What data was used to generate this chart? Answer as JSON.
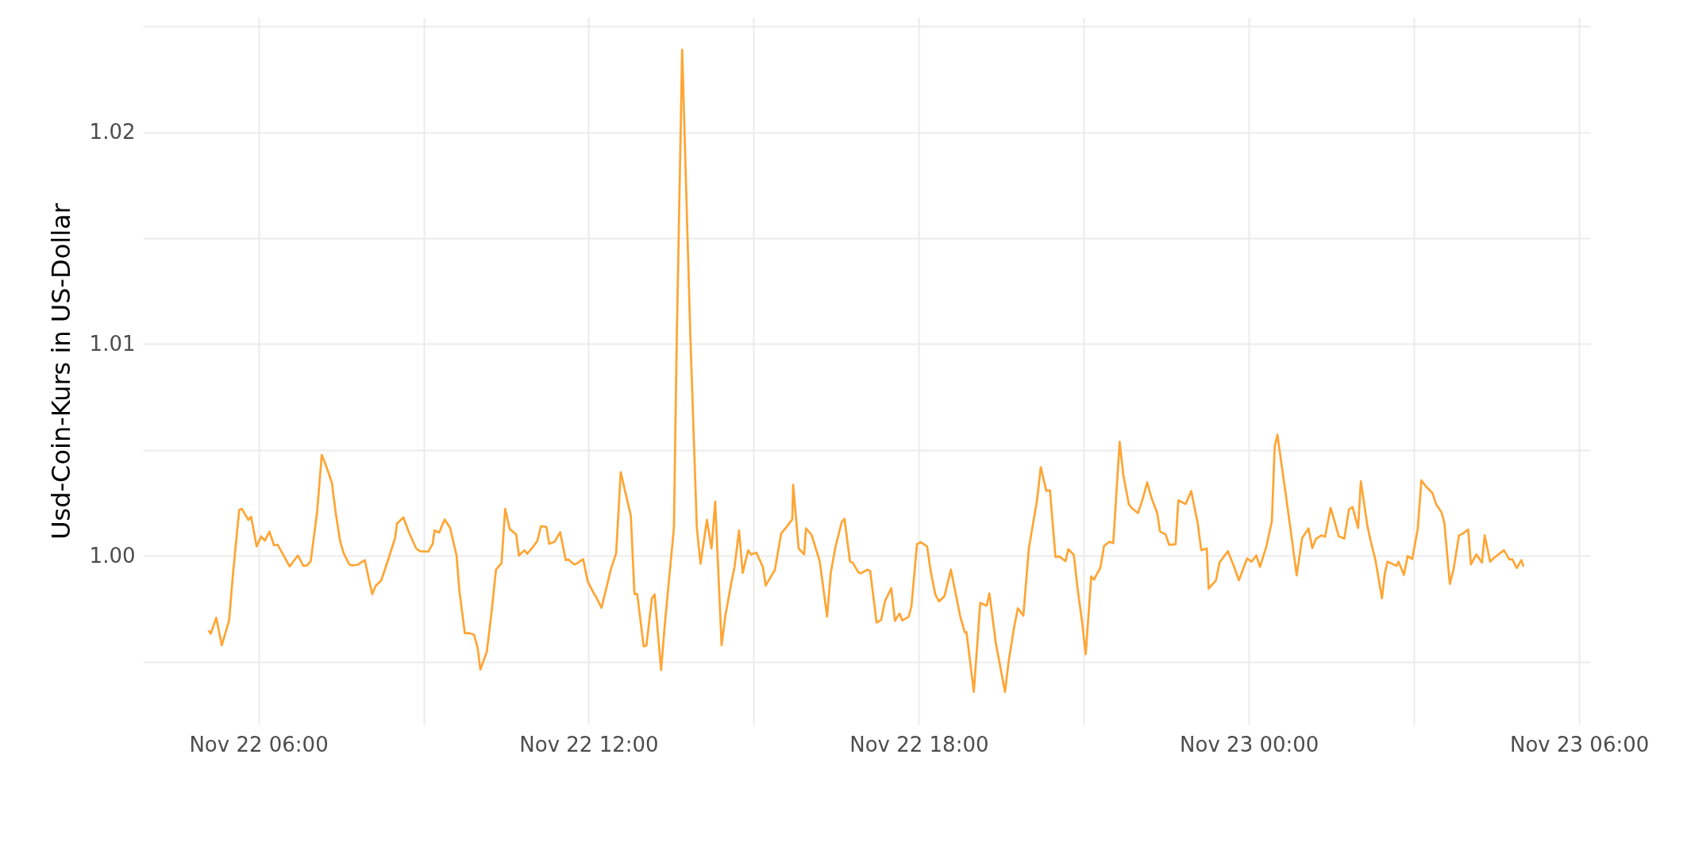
{
  "chart_data": {
    "type": "line",
    "ylabel": "Usd-Coin-Kurs in US-Dollar",
    "x": [
      "--11-22T05:06",
      "--11-22T05:08",
      "--11-22T05:14",
      "--11-22T05:20",
      "--11-22T05:28",
      "--11-22T05:32",
      "--11-22T05:39",
      "--11-22T05:42",
      "--11-22T05:49",
      "--11-22T05:52",
      "--11-22T05:58",
      "--11-22T06:03",
      "--11-22T06:07",
      "--11-22T06:12",
      "--11-22T06:17",
      "--11-22T06:21",
      "--11-22T06:34",
      "--11-22T06:43",
      "--11-22T06:49",
      "--11-22T06:53",
      "--11-22T06:57",
      "--11-22T07:04",
      "--11-22T07:09",
      "--11-22T07:13",
      "--11-22T07:20",
      "--11-22T07:24",
      "--11-22T07:29",
      "--11-22T07:33",
      "--11-22T07:39",
      "--11-22T07:42",
      "--11-22T07:48",
      "--11-22T07:56",
      "--11-22T08:00",
      "--11-22T08:04",
      "--11-22T08:08",
      "--11-22T08:14",
      "--11-22T08:22",
      "--11-22T08:29",
      "--11-22T08:31",
      "--11-22T08:38",
      "--11-22T08:44",
      "--11-22T08:52",
      "--11-22T08:56",
      "--11-22T09:05",
      "--11-22T09:10",
      "--11-22T09:12",
      "--11-22T09:17",
      "--11-22T09:23",
      "--11-22T09:29",
      "--11-22T09:36",
      "--11-22T09:39",
      "--11-22T09:45",
      "--11-22T09:50",
      "--11-22T09:55",
      "--11-22T09:59",
      "--11-22T10:02",
      "--11-22T10:09",
      "--11-22T10:14",
      "--11-22T10:19",
      "--11-22T10:25",
      "--11-22T10:29",
      "--11-22T10:34",
      "--11-22T10:41",
      "--11-22T10:44",
      "--11-22T10:50",
      "--11-22T10:53",
      "--11-22T10:58",
      "--11-22T11:04",
      "--11-22T11:08",
      "--11-22T11:14",
      "--11-22T11:17",
      "--11-22T11:23",
      "--11-22T11:29",
      "--11-22T11:35",
      "--11-22T11:38",
      "--11-22T11:44",
      "--11-22T11:47",
      "--11-22T11:54",
      "--11-22T11:59",
      "--11-22T12:06",
      "--11-22T12:08",
      "--11-22T12:14",
      "--11-22T12:20",
      "--11-22T12:24",
      "--11-22T12:30",
      "--11-22T12:35",
      "--11-22T12:46",
      "--11-22T12:50",
      "--11-22T12:53",
      "--11-22T13:00",
      "--11-22T13:03",
      "--11-22T13:09",
      "--11-22T13:12",
      "--11-22T13:19",
      "--11-22T13:23",
      "--11-22T13:33",
      "--11-22T13:36",
      "--11-22T13:42",
      "--11-22T13:51",
      "--11-22T13:58",
      "--11-22T14:02",
      "--11-22T14:09",
      "--11-22T14:14",
      "--11-22T14:18",
      "--11-22T14:25",
      "--11-22T14:29",
      "--11-22T14:36",
      "--11-22T14:39",
      "--11-22T14:44",
      "--11-22T14:48",
      "--11-22T14:54",
      "--11-22T14:57",
      "--11-22T15:03",
      "--11-22T15:10",
      "--11-22T15:13",
      "--11-22T15:23",
      "--11-22T15:30",
      "--11-22T15:35",
      "--11-22T15:42",
      "--11-22T15:43",
      "--11-22T15:49",
      "--11-22T15:55",
      "--11-22T15:57",
      "--11-22T16:03",
      "--11-22T16:12",
      "--11-22T16:20",
      "--11-22T16:24",
      "--11-22T16:29",
      "--11-22T16:36",
      "--11-22T16:39",
      "--11-22T16:45",
      "--11-22T16:48",
      "--11-22T16:54",
      "--11-22T16:57",
      "--11-22T17:04",
      "--11-22T17:07",
      "--11-22T17:14",
      "--11-22T17:19",
      "--11-22T17:23",
      "--11-22T17:30",
      "--11-22T17:34",
      "--11-22T17:39",
      "--11-22T17:42",
      "--11-22T17:49",
      "--11-22T17:52",
      "--11-22T17:58",
      "--11-22T18:02",
      "--11-22T18:09",
      "--11-22T18:13",
      "--11-22T18:18",
      "--11-22T18:22",
      "--11-22T18:28",
      "--11-22T18:35",
      "--11-22T18:45",
      "--11-22T18:50",
      "--11-22T18:52",
      "--11-22T19:00",
      "--11-22T19:07",
      "--11-22T19:14",
      "--11-22T19:17",
      "--11-22T19:24",
      "--11-22T19:34",
      "--11-22T19:38",
      "--11-22T19:44",
      "--11-22T19:48",
      "--11-22T19:54",
      "--11-22T20:00",
      "--11-22T20:09",
      "--11-22T20:13",
      "--11-22T20:19",
      "--11-22T20:23",
      "--11-22T20:29",
      "--11-22T20:33",
      "--11-22T20:40",
      "--11-22T20:43",
      "--11-22T20:49",
      "--11-22T20:53",
      "--11-22T20:58",
      "--11-22T21:02",
      "--11-22T21:08",
      "--11-22T21:11",
      "--11-22T21:18",
      "--11-22T21:22",
      "--11-22T21:28",
      "--11-22T21:32",
      "--11-22T21:39",
      "--11-22T21:43",
      "--11-22T21:49",
      "--11-22T21:52",
      "--11-22T21:59",
      "--11-22T22:04",
      "--11-22T22:09",
      "--11-22T22:14",
      "--11-22T22:20",
      "--11-22T22:23",
      "--11-22T22:29",
      "--11-22T22:33",
      "--11-22T22:40",
      "--11-22T22:43",
      "--11-22T22:51",
      "--11-22T22:57",
      "--11-22T23:04",
      "--11-22T23:08",
      "--11-22T23:14",
      "--11-22T23:16",
      "--11-22T23:24",
      "--11-22T23:28",
      "--11-22T23:37",
      "--11-22T23:43",
      "--11-22T23:49",
      "--11-22T23:58",
      "--11-23T00:03",
      "--11-23T00:08",
      "--11-23T00:12",
      "--11-23T00:19",
      "--11-23T00:25",
      "--11-23T00:28",
      "--11-23T00:31",
      "--11-23T00:40",
      "--11-23T00:48",
      "--11-23T00:52",
      "--11-23T00:58",
      "--11-23T01:05",
      "--11-23T01:09",
      "--11-23T01:13",
      "--11-23T01:19",
      "--11-23T01:23",
      "--11-23T01:29",
      "--11-23T01:38",
      "--11-23T01:44",
      "--11-23T01:49",
      "--11-23T01:53",
      "--11-23T01:59",
      "--11-23T02:02",
      "--11-23T02:09",
      "--11-23T02:13",
      "--11-23T02:18",
      "--11-23T02:25",
      "--11-23T02:28",
      "--11-23T02:31",
      "--11-23T02:41",
      "--11-23T02:43",
      "--11-23T02:49",
      "--11-23T02:53",
      "--11-23T02:58",
      "--11-23T03:04",
      "--11-23T03:08",
      "--11-23T03:13",
      "--11-23T03:20",
      "--11-23T03:24",
      "--11-23T03:30",
      "--11-23T03:33",
      "--11-23T03:39",
      "--11-23T03:43",
      "--11-23T03:49",
      "--11-23T03:52",
      "--11-23T03:59",
      "--11-23T04:02",
      "--11-23T04:08",
      "--11-23T04:14",
      "--11-23T04:17",
      "--11-23T04:23",
      "--11-23T04:27",
      "--11-23T04:38",
      "--11-23T04:44",
      "--11-23T04:47",
      "--11-23T04:52",
      "--11-23T04:57",
      "--11-23T04:59"
    ],
    "series": [
      {
        "color": "#ffa533",
        "values": [
          0.99645,
          0.99633,
          0.99708,
          0.99578,
          0.99695,
          0.99903,
          1.00217,
          1.00222,
          1.0017,
          1.00185,
          1.00045,
          1.00092,
          1.00072,
          1.00115,
          1.0005,
          1.00052,
          0.9995,
          1.00002,
          0.99953,
          0.99955,
          0.99975,
          1.0021,
          1.00477,
          1.00434,
          1.00347,
          1.0021,
          1.0007,
          1.00012,
          0.9996,
          0.99955,
          0.99958,
          0.9998,
          0.99898,
          0.9982,
          0.9986,
          0.99885,
          0.9999,
          1.00085,
          1.00152,
          1.00182,
          1.00112,
          1.00035,
          1.00022,
          1.0002,
          1.00057,
          1.0012,
          1.0011,
          1.00172,
          1.00132,
          1.00002,
          0.9984,
          0.99635,
          0.99635,
          0.99628,
          0.99566,
          0.99463,
          0.99548,
          0.99728,
          0.99935,
          0.99965,
          1.00222,
          1.00127,
          1.00102,
          1.00002,
          1.00027,
          1.0001,
          1.00035,
          1.0007,
          1.0014,
          1.00137,
          1.00057,
          1.00067,
          1.00112,
          0.9998,
          0.99983,
          0.9996,
          0.99963,
          0.99985,
          0.9988,
          0.9982,
          0.99808,
          0.99755,
          0.9986,
          0.99933,
          1.00012,
          1.00395,
          1.0019,
          0.9982,
          0.9982,
          0.99573,
          0.99576,
          0.998,
          0.99818,
          0.99461,
          0.99673,
          1.00132,
          1.01001,
          1.0239,
          1.01026,
          1.00132,
          0.99963,
          1.0017,
          1.00035,
          1.00257,
          0.99578,
          0.99715,
          0.99883,
          0.99945,
          1.0012,
          0.9992,
          1.00027,
          1.00007,
          1.00015,
          0.99948,
          0.9986,
          0.99933,
          1.00107,
          1.00132,
          1.00172,
          1.00335,
          1.00035,
          1.00007,
          1.0013,
          1.001,
          0.99975,
          0.99713,
          0.9992,
          1.0004,
          1.0016,
          1.00175,
          0.99973,
          0.99968,
          0.99923,
          0.99918,
          0.99935,
          0.99928,
          0.99685,
          0.99698,
          0.99785,
          0.99848,
          0.99693,
          0.99728,
          0.99695,
          0.99713,
          0.99763,
          1.00055,
          1.00065,
          1.00045,
          0.99928,
          0.99818,
          0.99785,
          0.9981,
          0.99935,
          0.99718,
          0.9964,
          0.9964,
          0.99358,
          0.99778,
          0.99765,
          0.99823,
          0.99588,
          0.99358,
          0.99503,
          0.99665,
          0.99753,
          0.99718,
          1.00035,
          1.00265,
          1.00419,
          1.00307,
          1.0031,
          0.99995,
          0.99998,
          0.99975,
          1.00032,
          1.00005,
          0.9985,
          0.9969,
          0.99536,
          0.99903,
          0.99888,
          0.99945,
          1.00047,
          1.00067,
          1.0006,
          1.00539,
          1.00382,
          1.00245,
          1.00227,
          1.00202,
          1.00267,
          1.00347,
          1.0027,
          1.00202,
          1.00115,
          1.00102,
          1.00052,
          1.00055,
          1.00262,
          1.00245,
          1.00307,
          1.00157,
          1.00027,
          1.00035,
          0.99845,
          0.99885,
          0.9997,
          1.00022,
          0.99958,
          0.99885,
          0.99988,
          0.99973,
          1.00002,
          0.99948,
          1.00045,
          1.00165,
          1.00514,
          1.00572,
          1.00295,
          1.0004,
          0.99908,
          1.00085,
          1.0013,
          1.00037,
          1.0008,
          1.00097,
          1.0009,
          1.00227,
          1.00092,
          1.00082,
          1.0022,
          1.0023,
          1.00132,
          1.00352,
          1.00145,
          1.00065,
          0.99978,
          0.998,
          0.99915,
          0.99973,
          0.99953,
          0.99973,
          0.9991,
          1.0,
          0.99985,
          1.00127,
          1.00357,
          1.00327,
          1.00297,
          1.00245,
          1.00205,
          1.00157,
          0.99868,
          0.99935,
          1.00097,
          1.00102,
          1.00125,
          0.9996,
          1.00007,
          0.99968,
          1.00097,
          0.99973,
          0.9999,
          1.00027,
          0.99983,
          0.99985,
          0.99943,
          0.9998,
          0.99953
        ]
      }
    ],
    "xlim": [
      "--11-22T03:54",
      "--11-23T06:12"
    ],
    "xticks": [
      {
        "value": "--11-22T06:00",
        "label": "Nov 22 06:00"
      },
      {
        "value": "--11-22T09:00",
        "label": null
      },
      {
        "value": "--11-22T12:00",
        "label": "Nov 22 12:00"
      },
      {
        "value": "--11-22T15:00",
        "label": null
      },
      {
        "value": "--11-22T18:00",
        "label": "Nov 22 18:00"
      },
      {
        "value": "--11-22T21:00",
        "label": null
      },
      {
        "value": "--11-23T00:00",
        "label": "Nov 23 00:00"
      },
      {
        "value": "--11-23T03:00",
        "label": null
      },
      {
        "value": "--11-23T06:00",
        "label": "Nov 23 06:00"
      }
    ],
    "ylim": [
      0.99203,
      1.02542
    ],
    "yticks": [
      {
        "value": 0.995,
        "label": null
      },
      {
        "value": 1,
        "label": "1.00"
      },
      {
        "value": 1.005,
        "label": null
      },
      1.01,
      {
        "value": 1.015,
        "label": null
      },
      1.02,
      {
        "value": 1.025,
        "label": null
      }
    ],
    "grid": true
  }
}
